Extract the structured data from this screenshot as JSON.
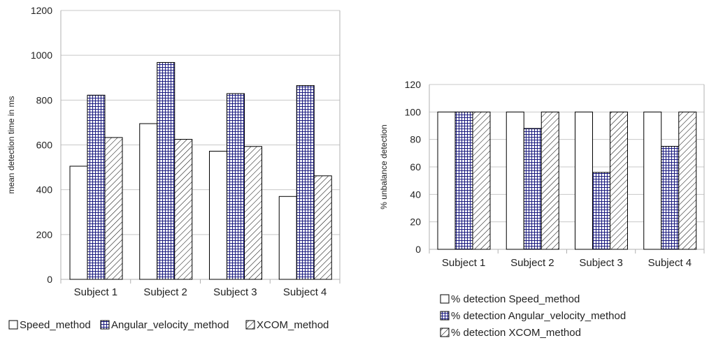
{
  "chart_data": [
    {
      "type": "bar",
      "categories": [
        "Subject 1",
        "Subject 2",
        "Subject 3",
        "Subject 4"
      ],
      "series": [
        {
          "name": "Speed_method",
          "values": [
            505,
            695,
            572,
            370
          ]
        },
        {
          "name": "Angular_velocity_method",
          "values": [
            822,
            968,
            829,
            865
          ]
        },
        {
          "name": "XCOM_method",
          "values": [
            633,
            625,
            593,
            462
          ]
        }
      ],
      "ylabel": "mean detection time in ms",
      "xlabel": "",
      "ylim": [
        0,
        1200
      ],
      "yticks": [
        0,
        200,
        400,
        600,
        800,
        1000,
        1200
      ],
      "grid": true,
      "legend_placement": "bottom"
    },
    {
      "type": "bar",
      "categories": [
        "Subject 1",
        "Subject 2",
        "Subject 3",
        "Subject 4"
      ],
      "series": [
        {
          "name": "% detection Speed_method",
          "values": [
            100,
            100,
            100,
            100
          ]
        },
        {
          "name": "% detection Angular_velocity_method",
          "values": [
            100,
            88,
            56,
            75
          ]
        },
        {
          "name": "% detection XCOM_method",
          "values": [
            100,
            100,
            100,
            100
          ]
        }
      ],
      "ylabel": "% unbalance detection",
      "xlabel": "",
      "ylim": [
        0,
        120
      ],
      "yticks": [
        0,
        20,
        40,
        60,
        80,
        100,
        120
      ],
      "grid": true,
      "legend_placement": "bottom"
    }
  ],
  "series_fills": [
    "solid-white",
    "crosshatch-navy",
    "diagonal-hatch"
  ],
  "colors": {
    "grid": "#c8c8c8",
    "axis": "#b0b0b0",
    "bar_border": "#000000",
    "crosshatch": "#1a1a80"
  }
}
